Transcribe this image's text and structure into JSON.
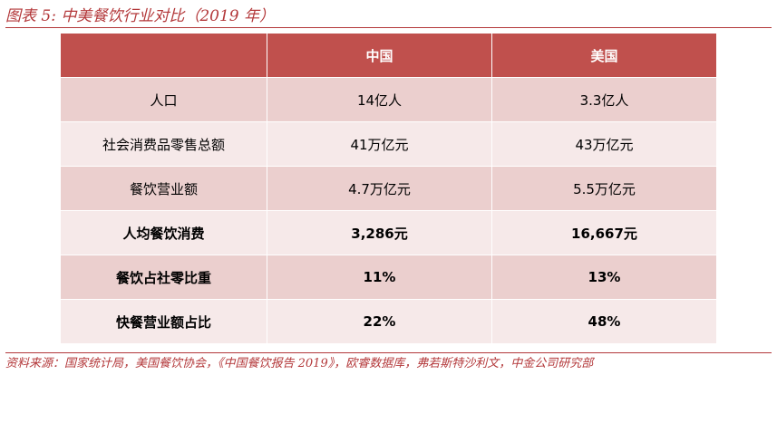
{
  "caption": "图表 5:  中美餐饮行业对比（2019 年）",
  "table": {
    "headers": [
      "",
      "中国",
      "美国"
    ],
    "rows": [
      {
        "label": "人口",
        "china": "14亿人",
        "usa": "3.3亿人"
      },
      {
        "label": "社会消费品零售总额",
        "china": "41万亿元",
        "usa": "43万亿元"
      },
      {
        "label": "餐饮营业额",
        "china": "4.7万亿元",
        "usa": "5.5万亿元"
      },
      {
        "label": "人均餐饮消费",
        "china": "3,286元",
        "usa": "16,667元"
      },
      {
        "label": "餐饮占社零比重",
        "china": "11%",
        "usa": "13%"
      },
      {
        "label": "快餐营业额占比",
        "china": "22%",
        "usa": "48%"
      }
    ]
  },
  "source": "资料来源：国家统计局，美国餐饮协会，《中国餐饮报告 2019》，欧睿数据库，弗若斯特沙利文，中金公司研究部",
  "colors": {
    "header_bg": "#c0504d",
    "row_pink": "#ebcfce",
    "row_light": "#f6e9e9",
    "caption_text": "#b3383a"
  }
}
